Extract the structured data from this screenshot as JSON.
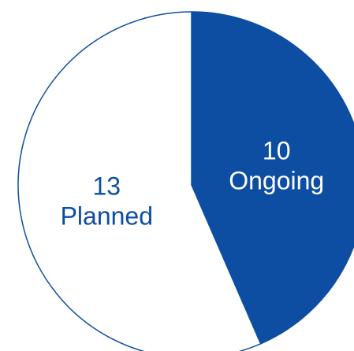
{
  "chart_data": {
    "type": "pie",
    "title": "",
    "slices": [
      {
        "label": "Ongoing",
        "value": 10,
        "color": "#0d4ea2",
        "text_color": "#ffffff"
      },
      {
        "label": "Planned",
        "value": 13,
        "color": "#ffffff",
        "text_color": "#0d4ea2"
      }
    ],
    "outline_color": "#0d4ea2",
    "start_angle": "top",
    "direction": "clockwise",
    "legend": "none"
  }
}
